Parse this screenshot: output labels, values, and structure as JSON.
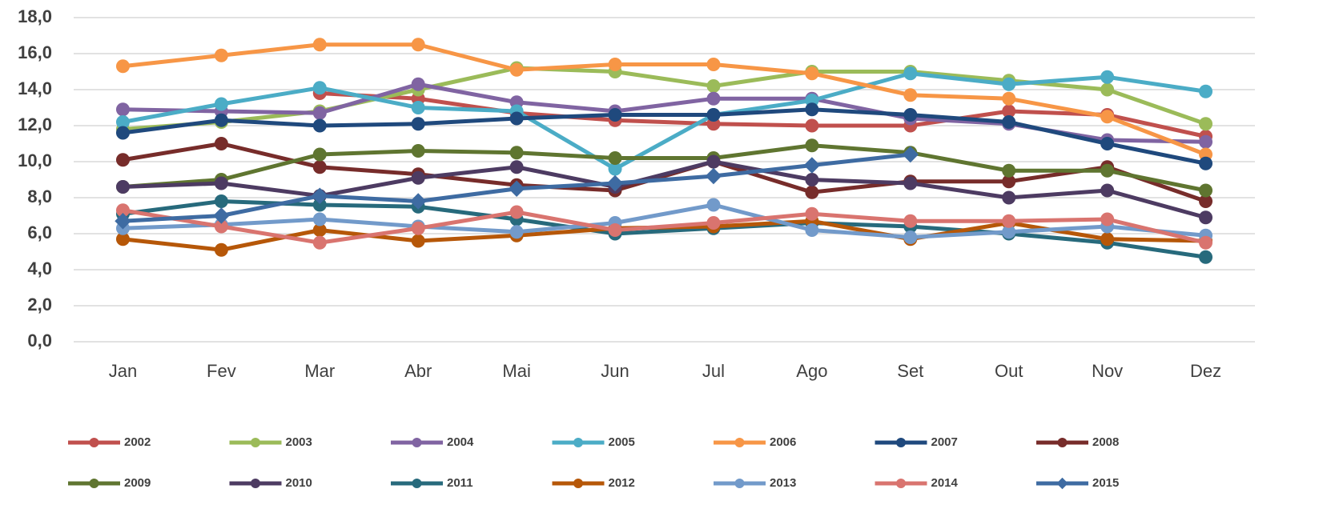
{
  "chart_data": {
    "type": "line",
    "categories": [
      "Jan",
      "Fev",
      "Mar",
      "Abr",
      "Mai",
      "Jun",
      "Jul",
      "Ago",
      "Set",
      "Out",
      "Nov",
      "Dez"
    ],
    "ylim": [
      0,
      18
    ],
    "yticks": [
      {
        "value": 0,
        "label": "0,0"
      },
      {
        "value": 2,
        "label": "2,0"
      },
      {
        "value": 4,
        "label": "4,0"
      },
      {
        "value": 6,
        "label": "6,0"
      },
      {
        "value": 8,
        "label": "8,0"
      },
      {
        "value": 10,
        "label": "10,0"
      },
      {
        "value": 12,
        "label": "12,0"
      },
      {
        "value": 14,
        "label": "14,0"
      },
      {
        "value": 16,
        "label": "16,0"
      },
      {
        "value": 18,
        "label": "18,0"
      }
    ],
    "grid": true,
    "legend": "bottom",
    "series": [
      {
        "name": "2002",
        "color": "#c0504d",
        "marker": "circle",
        "values": [
          null,
          null,
          13.8,
          13.5,
          12.7,
          12.3,
          12.1,
          12.0,
          12.0,
          12.8,
          12.6,
          11.4
        ]
      },
      {
        "name": "2003",
        "color": "#9bbb59",
        "marker": "circle",
        "values": [
          11.8,
          12.2,
          12.8,
          14.0,
          15.2,
          15.0,
          14.2,
          15.0,
          15.0,
          14.5,
          14.0,
          12.1
        ]
      },
      {
        "name": "2004",
        "color": "#8064a2",
        "marker": "circle",
        "values": [
          12.9,
          12.8,
          12.7,
          14.3,
          13.3,
          12.8,
          13.5,
          13.5,
          12.4,
          12.1,
          11.2,
          11.1
        ]
      },
      {
        "name": "2005",
        "color": "#4bacc6",
        "marker": "circle",
        "values": [
          12.2,
          13.2,
          14.1,
          13.0,
          12.8,
          9.6,
          12.6,
          13.4,
          14.9,
          14.3,
          14.7,
          13.9
        ]
      },
      {
        "name": "2006",
        "color": "#f79646",
        "marker": "circle",
        "values": [
          15.3,
          15.9,
          16.5,
          16.5,
          15.1,
          15.4,
          15.4,
          14.9,
          13.7,
          13.5,
          12.5,
          10.4
        ]
      },
      {
        "name": "2007",
        "color": "#1f497d",
        "marker": "circle",
        "values": [
          11.6,
          12.3,
          12.0,
          12.1,
          12.4,
          12.6,
          12.6,
          12.9,
          12.6,
          12.2,
          11.0,
          9.9
        ]
      },
      {
        "name": "2008",
        "color": "#772c2a",
        "marker": "circle",
        "values": [
          10.1,
          11.0,
          9.7,
          9.3,
          8.7,
          8.4,
          10.0,
          8.3,
          8.9,
          8.9,
          9.7,
          7.8
        ]
      },
      {
        "name": "2009",
        "color": "#5f7530",
        "marker": "circle",
        "values": [
          8.6,
          9.0,
          10.4,
          10.6,
          10.5,
          10.2,
          10.2,
          10.9,
          10.5,
          9.5,
          9.5,
          8.4
        ]
      },
      {
        "name": "2010",
        "color": "#4d3b62",
        "marker": "circle",
        "values": [
          8.6,
          8.8,
          8.1,
          9.1,
          9.7,
          8.6,
          10.0,
          9.0,
          8.8,
          8.0,
          8.4,
          6.9
        ]
      },
      {
        "name": "2011",
        "color": "#276a7c",
        "marker": "circle",
        "values": [
          7.1,
          7.8,
          7.6,
          7.5,
          6.8,
          6.0,
          6.3,
          6.6,
          6.4,
          6.0,
          5.5,
          4.7
        ]
      },
      {
        "name": "2012",
        "color": "#b65708",
        "marker": "circle",
        "values": [
          5.7,
          5.1,
          6.2,
          5.6,
          5.9,
          6.3,
          6.4,
          6.7,
          5.7,
          6.6,
          5.7,
          5.6
        ]
      },
      {
        "name": "2013",
        "color": "#729aca",
        "marker": "circle",
        "values": [
          6.3,
          6.5,
          6.8,
          6.4,
          6.1,
          6.6,
          7.6,
          6.2,
          5.8,
          6.1,
          6.4,
          5.9
        ]
      },
      {
        "name": "2014",
        "color": "#d9746f",
        "marker": "circle",
        "values": [
          7.3,
          6.4,
          5.5,
          6.3,
          7.2,
          6.2,
          6.6,
          7.1,
          6.7,
          6.7,
          6.8,
          5.5
        ]
      },
      {
        "name": "2015",
        "color": "#3e6ba2",
        "marker": "diamond",
        "values": [
          6.7,
          7.0,
          8.1,
          7.8,
          8.5,
          8.8,
          9.2,
          9.8,
          10.4,
          null,
          null,
          null
        ]
      }
    ]
  }
}
